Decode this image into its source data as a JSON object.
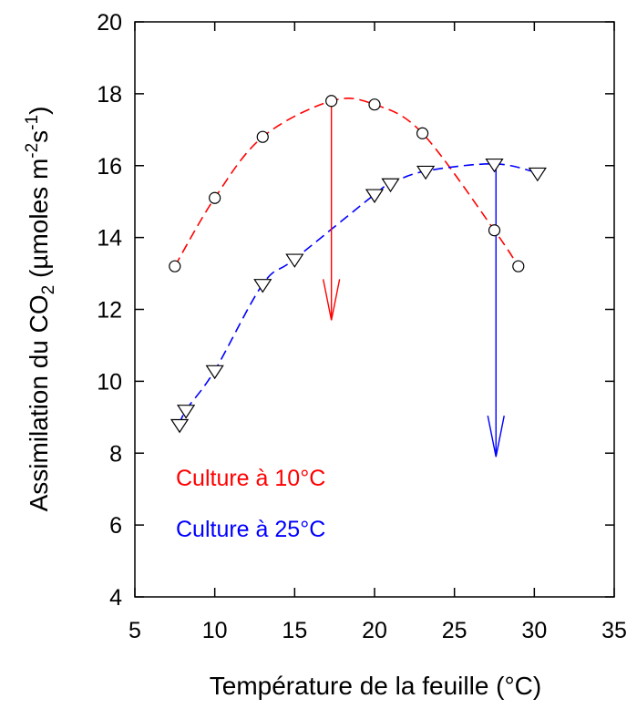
{
  "chart_data": {
    "type": "line",
    "title": "",
    "xlabel": "Température de la feuille (°C)",
    "ylabel": {
      "prefix": "Assimilation du CO",
      "co2_sub": "2",
      "mid": " (µmoles m",
      "m_sup": "-2",
      "s": "s",
      "s_sup": "-1",
      "suffix": ")"
    },
    "xlim": [
      5,
      35
    ],
    "ylim": [
      4,
      20
    ],
    "x_ticks": [
      "5",
      "10",
      "15",
      "20",
      "25",
      "30",
      "35"
    ],
    "y_ticks": [
      "4",
      "6",
      "8",
      "10",
      "12",
      "14",
      "16",
      "18",
      "20"
    ],
    "legend_placement": "lower-left inside",
    "series": [
      {
        "name": "Culture à 10°C",
        "color": "#ff0000",
        "marker": "circle",
        "x": [
          7.5,
          10,
          13,
          17.3,
          20,
          23,
          27.5,
          29
        ],
        "y": [
          13.2,
          15.1,
          16.8,
          17.8,
          17.7,
          16.9,
          14.2,
          13.2
        ]
      },
      {
        "name": "Culture à 25°C",
        "color": "#0000ff",
        "marker": "triangle-down",
        "x": [
          7.8,
          8.2,
          10,
          13,
          15,
          20,
          21,
          23.2,
          27.5,
          30.2
        ],
        "y": [
          8.8,
          9.2,
          10.3,
          12.7,
          13.4,
          15.2,
          15.5,
          15.85,
          16.05,
          15.8
        ]
      }
    ],
    "arrows": [
      {
        "series": "Culture à 10°C",
        "color": "#ff0000",
        "x": 17.3,
        "y_from": 17.8,
        "y_to": 11.7
      },
      {
        "series": "Culture à 25°C",
        "color": "#0000ff",
        "x": 27.6,
        "y_from": 16.05,
        "y_to": 7.9
      }
    ]
  }
}
